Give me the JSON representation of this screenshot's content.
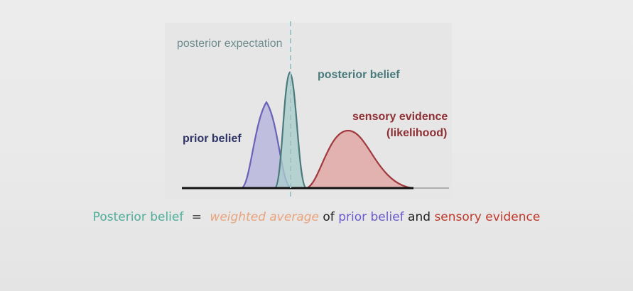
{
  "labels": {
    "posterior_expectation": "posterior expectation",
    "posterior_belief": "posterior belief",
    "prior_belief": "prior belief",
    "sensory_evidence": "sensory evidence",
    "likelihood": "(likelihood)"
  },
  "equation": {
    "posterior": "Posterior belief",
    "equals": "=",
    "weighted": "weighted average",
    "of": "of",
    "prior": "prior belief",
    "and": "and",
    "sensory": "sensory evidence"
  },
  "colors": {
    "prior": "#6b62b8",
    "posterior": "#4a7a7c",
    "sensory": "#a03a3e",
    "posterior_expectation_line": "#9fc4c6"
  }
}
